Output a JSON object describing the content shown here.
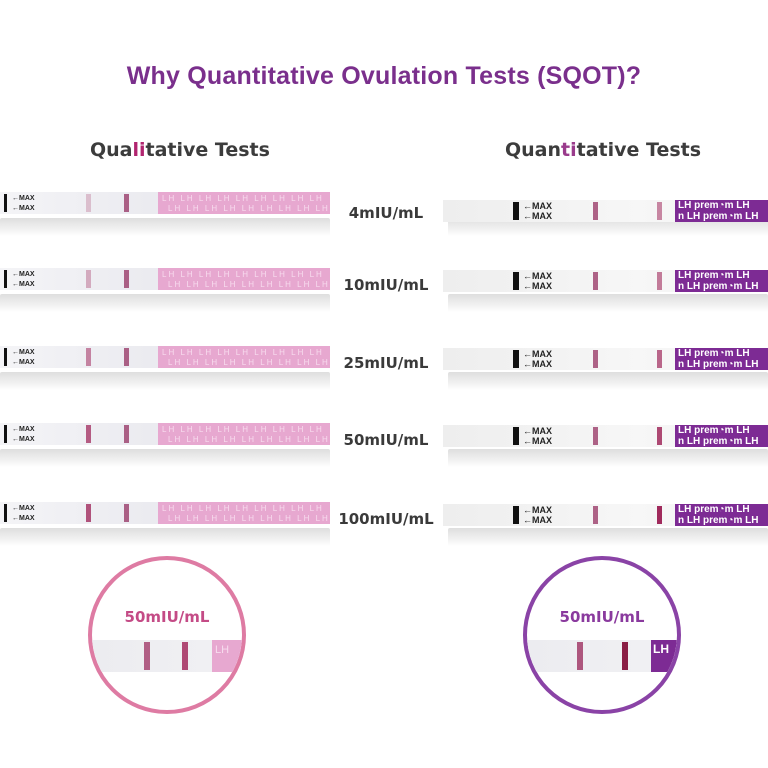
{
  "title": "Why Quantitative Ovulation Tests (SQOT)?",
  "left_heading": {
    "pre": "Qua",
    "hl": "li",
    "post": "tative Tests"
  },
  "right_heading": {
    "pre": "Quan",
    "hl": "ti",
    "post": "tative Tests"
  },
  "strip_text": {
    "max_arrow": "←MAX",
    "max_bold": "MAX",
    "lh_pattern": "LH LH LH LH LH LH LH LH LH",
    "brand_line_1": "LH  prem◔m  LH",
    "brand_line_2": "n  LH  prem◔m  LH"
  },
  "rows": [
    {
      "concentration": "4mIU/mL",
      "qual_test_intensity": 0.25,
      "quant_test_intensity": 0.55
    },
    {
      "concentration": "10mIU/mL",
      "qual_test_intensity": 0.35,
      "quant_test_intensity": 0.6
    },
    {
      "concentration": "25mIU/mL",
      "qual_test_intensity": 0.55,
      "quant_test_intensity": 0.7
    },
    {
      "concentration": "50mIU/mL",
      "qual_test_intensity": 0.75,
      "quant_test_intensity": 0.85
    },
    {
      "concentration": "100mIU/mL",
      "qual_test_intensity": 0.8,
      "quant_test_intensity": 1.0
    }
  ],
  "zoom_left": {
    "label": "50mIU/mL",
    "pad_text": "LH"
  },
  "zoom_right": {
    "label": "50mIU/mL",
    "pad_text": "LH"
  },
  "colors": {
    "title": "#7a2f8c",
    "qualitative_accent": "#de7ba3",
    "quantitative_accent": "#8a43a6",
    "qual_pad": "#e7a8d0",
    "quant_pad": "#7d2b94",
    "test_line": "#a02a5c"
  }
}
